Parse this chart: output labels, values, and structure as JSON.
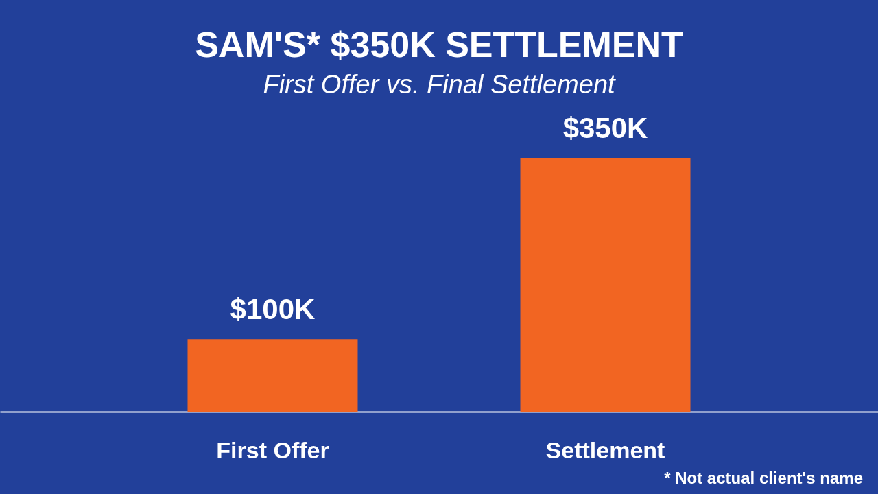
{
  "chart_data": {
    "type": "bar",
    "title": "SAM'S* $350K SETTLEMENT",
    "subtitle": "First Offer vs. Final Settlement",
    "categories": [
      "First Offer",
      "Settlement"
    ],
    "values": [
      100,
      350
    ],
    "color": "#f26522",
    "value_labels": [
      "$100K",
      "$350K"
    ],
    "annotations": [
      "* Not actual client's name"
    ]
  }
}
